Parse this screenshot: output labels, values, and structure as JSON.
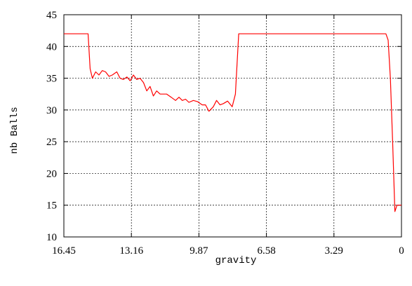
{
  "chart_data": {
    "type": "line",
    "xlabel": "gravity",
    "ylabel": "nb Balls",
    "x_reversed": true,
    "xlim": [
      16.45,
      0
    ],
    "ylim": [
      10,
      45
    ],
    "x_ticks": [
      "16.45",
      "13.16",
      "9.87",
      "6.58",
      "3.29",
      "0"
    ],
    "y_ticks": [
      "10",
      "15",
      "20",
      "25",
      "30",
      "35",
      "40",
      "45"
    ],
    "grid": true,
    "series": [
      {
        "color": "#ff0000",
        "x": [
          16.45,
          15.27,
          15.17,
          15.06,
          14.9,
          14.74,
          14.58,
          14.42,
          14.25,
          14.09,
          13.87,
          13.71,
          13.55,
          13.38,
          13.22,
          13.06,
          12.9,
          12.74,
          12.57,
          12.41,
          12.25,
          12.09,
          11.93,
          11.76,
          11.6,
          11.44,
          11.22,
          11.01,
          10.84,
          10.68,
          10.52,
          10.36,
          10.14,
          9.93,
          9.71,
          9.55,
          9.38,
          9.17,
          9.01,
          8.84,
          8.68,
          8.47,
          8.25,
          8.09,
          7.93,
          7.77,
          7.66,
          7.55,
          0.76,
          0.65,
          0.54,
          0.43,
          0.32,
          0.22,
          0.0
        ],
        "y": [
          42.0,
          42.0,
          36.5,
          35.0,
          36.0,
          35.5,
          36.2,
          36.0,
          35.3,
          35.5,
          36.0,
          35.0,
          34.8,
          35.2,
          34.6,
          35.5,
          34.8,
          35.0,
          34.3,
          33.0,
          33.7,
          32.2,
          33.0,
          32.5,
          32.5,
          32.5,
          32.0,
          31.5,
          32.0,
          31.5,
          31.7,
          31.2,
          31.5,
          31.3,
          30.8,
          30.8,
          29.8,
          30.5,
          31.5,
          30.8,
          31.0,
          31.4,
          30.5,
          32.5,
          42.0,
          42.0,
          42.0,
          42.0,
          42.0,
          41.0,
          35.0,
          25.0,
          14.0,
          15.0,
          15.0
        ]
      }
    ]
  }
}
